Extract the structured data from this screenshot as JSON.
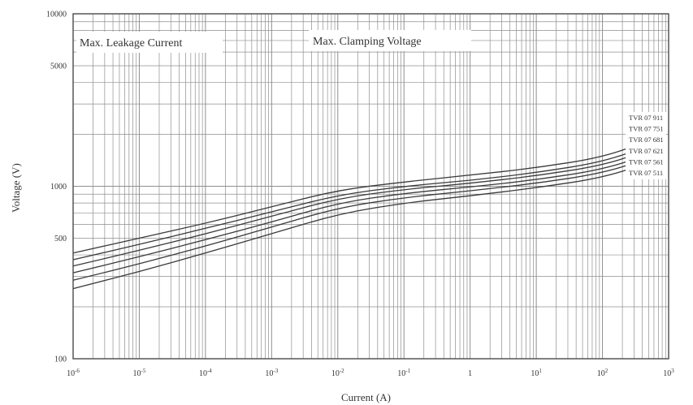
{
  "chart_data": {
    "type": "line",
    "title": "",
    "xlabel": "Current (A)",
    "ylabel": "Voltage (V)",
    "xscale": "log",
    "yscale": "log",
    "xlim": [
      1e-06,
      1000
    ],
    "ylim": [
      100,
      10000
    ],
    "grid": true,
    "legend_position": "right",
    "x_ticks": [
      {
        "value": 1e-06,
        "base": "10",
        "exp": "-6"
      },
      {
        "value": 1e-05,
        "base": "10",
        "exp": "-5"
      },
      {
        "value": 0.0001,
        "base": "10",
        "exp": "-4"
      },
      {
        "value": 0.001,
        "base": "10",
        "exp": "-3"
      },
      {
        "value": 0.01,
        "base": "10",
        "exp": "-2"
      },
      {
        "value": 0.1,
        "base": "10",
        "exp": "-1"
      },
      {
        "value": 1,
        "base": "1",
        "exp": ""
      },
      {
        "value": 10,
        "base": "10",
        "exp": "1"
      },
      {
        "value": 100,
        "base": "10",
        "exp": "2"
      },
      {
        "value": 1000,
        "base": "10",
        "exp": "3"
      }
    ],
    "y_ticks": [
      {
        "value": 100,
        "label": "100"
      },
      {
        "value": 500,
        "label": "500"
      },
      {
        "value": 1000,
        "label": "1000"
      },
      {
        "value": 5000,
        "label": "5000"
      },
      {
        "value": 10000,
        "label": "10000"
      }
    ],
    "annotations": [
      {
        "text": "Max. Leakage Current",
        "region": "leakage"
      },
      {
        "text": "Max. Clamping Voltage",
        "region": "clamping"
      }
    ],
    "series": [
      {
        "name": "TVR 07 911",
        "x": [
          1e-06,
          1e-05,
          0.0001,
          0.001,
          0.01,
          0.1,
          1,
          10,
          100,
          500
        ],
        "y": [
          410,
          500,
          610,
          760,
          950,
          1060,
          1160,
          1280,
          1470,
          1840
        ]
      },
      {
        "name": "TVR 07 751",
        "x": [
          1e-06,
          1e-05,
          0.0001,
          0.001,
          0.01,
          0.1,
          1,
          10,
          100,
          500
        ],
        "y": [
          375,
          460,
          570,
          710,
          890,
          1000,
          1080,
          1200,
          1380,
          1720
        ]
      },
      {
        "name": "TVR 07 681",
        "x": [
          1e-06,
          1e-05,
          0.0001,
          0.001,
          0.01,
          0.1,
          1,
          10,
          100,
          500
        ],
        "y": [
          345,
          425,
          530,
          670,
          850,
          960,
          1040,
          1150,
          1320,
          1620
        ]
      },
      {
        "name": "TVR 07 621",
        "x": [
          1e-06,
          1e-05,
          0.0001,
          0.001,
          0.01,
          0.1,
          1,
          10,
          100,
          500
        ],
        "y": [
          315,
          390,
          490,
          620,
          800,
          910,
          990,
          1090,
          1250,
          1530
        ]
      },
      {
        "name": "TVR 07 561",
        "x": [
          1e-06,
          1e-05,
          0.0001,
          0.001,
          0.01,
          0.1,
          1,
          10,
          100,
          500
        ],
        "y": [
          285,
          355,
          450,
          580,
          750,
          860,
          940,
          1040,
          1190,
          1450
        ]
      },
      {
        "name": "TVR 07 511",
        "x": [
          1e-06,
          1e-05,
          0.0001,
          0.001,
          0.01,
          0.1,
          1,
          10,
          100,
          500
        ],
        "y": [
          255,
          320,
          410,
          530,
          690,
          800,
          880,
          980,
          1120,
          1370
        ]
      }
    ],
    "colors": {
      "line": "#3a3a3a",
      "grid": "#8f8f8f",
      "frame": "#4a4a4a",
      "text": "#333333"
    }
  }
}
